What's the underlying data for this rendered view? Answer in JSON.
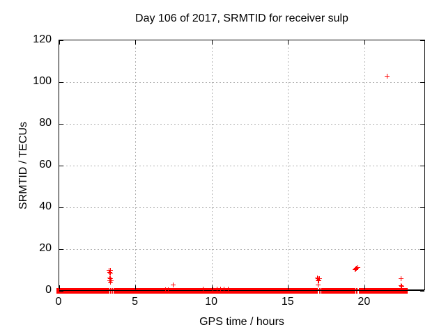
{
  "chart_data": {
    "type": "scatter",
    "title": "Day 106 of 2017, SRMTID for receiver sulp",
    "xlabel": "GPS time / hours",
    "ylabel": "SRMTID / TECUs",
    "xlim": [
      0,
      24
    ],
    "ylim": [
      0,
      120
    ],
    "xticks": [
      0,
      5,
      10,
      15,
      20
    ],
    "yticks": [
      0,
      20,
      40,
      60,
      80,
      100,
      120
    ],
    "grid": true,
    "legend": "none",
    "marker": "plus",
    "marker_color": "#ff0000",
    "grid_color": "#b0b0b0",
    "axis_color": "#000000",
    "baseline_band": {
      "value": 0,
      "description": "dense overlapping + markers along y=0",
      "segments": [
        [
          0.0,
          3.28
        ],
        [
          3.33,
          3.4
        ],
        [
          3.45,
          3.52
        ],
        [
          3.57,
          16.95
        ],
        [
          17.01,
          17.1
        ],
        [
          17.15,
          19.4
        ],
        [
          19.45,
          19.55
        ],
        [
          19.6,
          22.82
        ]
      ]
    },
    "points": [
      [
        3.28,
        9.9
      ],
      [
        3.34,
        9.7
      ],
      [
        3.3,
        8.9
      ],
      [
        3.37,
        8.6
      ],
      [
        3.3,
        6.2
      ],
      [
        3.36,
        5.9
      ],
      [
        3.31,
        5.0
      ],
      [
        3.38,
        4.7
      ],
      [
        3.34,
        4.3
      ],
      [
        6.95,
        0.5
      ],
      [
        7.15,
        0.5
      ],
      [
        7.44,
        3.0
      ],
      [
        9.4,
        0.7
      ],
      [
        10.05,
        0.6
      ],
      [
        10.35,
        0.9
      ],
      [
        10.55,
        1.0
      ],
      [
        10.8,
        0.9
      ],
      [
        11.05,
        0.7
      ],
      [
        16.92,
        6.3
      ],
      [
        16.97,
        6.0
      ],
      [
        17.03,
        5.7
      ],
      [
        16.95,
        5.2
      ],
      [
        17.0,
        4.9
      ],
      [
        16.95,
        3.0
      ],
      [
        19.36,
        10.2
      ],
      [
        19.42,
        10.6
      ],
      [
        19.48,
        11.0
      ],
      [
        19.54,
        11.3
      ],
      [
        19.45,
        10.9
      ],
      [
        21.47,
        102.7
      ],
      [
        22.38,
        6.0
      ],
      [
        22.4,
        2.6
      ],
      [
        22.42,
        2.1
      ]
    ]
  }
}
